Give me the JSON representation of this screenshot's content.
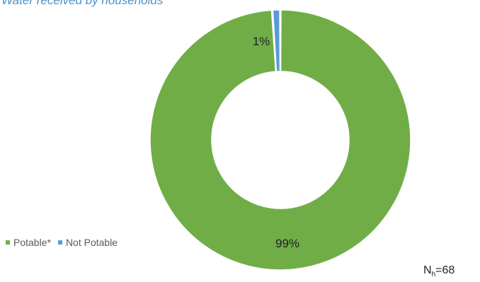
{
  "chart_data": {
    "type": "pie",
    "title": "Water received by households",
    "hole": true,
    "series": [
      {
        "name": "Potable*",
        "value": 99,
        "label": "99%",
        "color": "#70ad47"
      },
      {
        "name": "Not Potable",
        "value": 1,
        "label": "1%",
        "color": "#5b9bd5"
      }
    ],
    "legend": "bottom-left"
  },
  "note": {
    "prefix": "N",
    "sub": "h",
    "suffix": "=68"
  }
}
